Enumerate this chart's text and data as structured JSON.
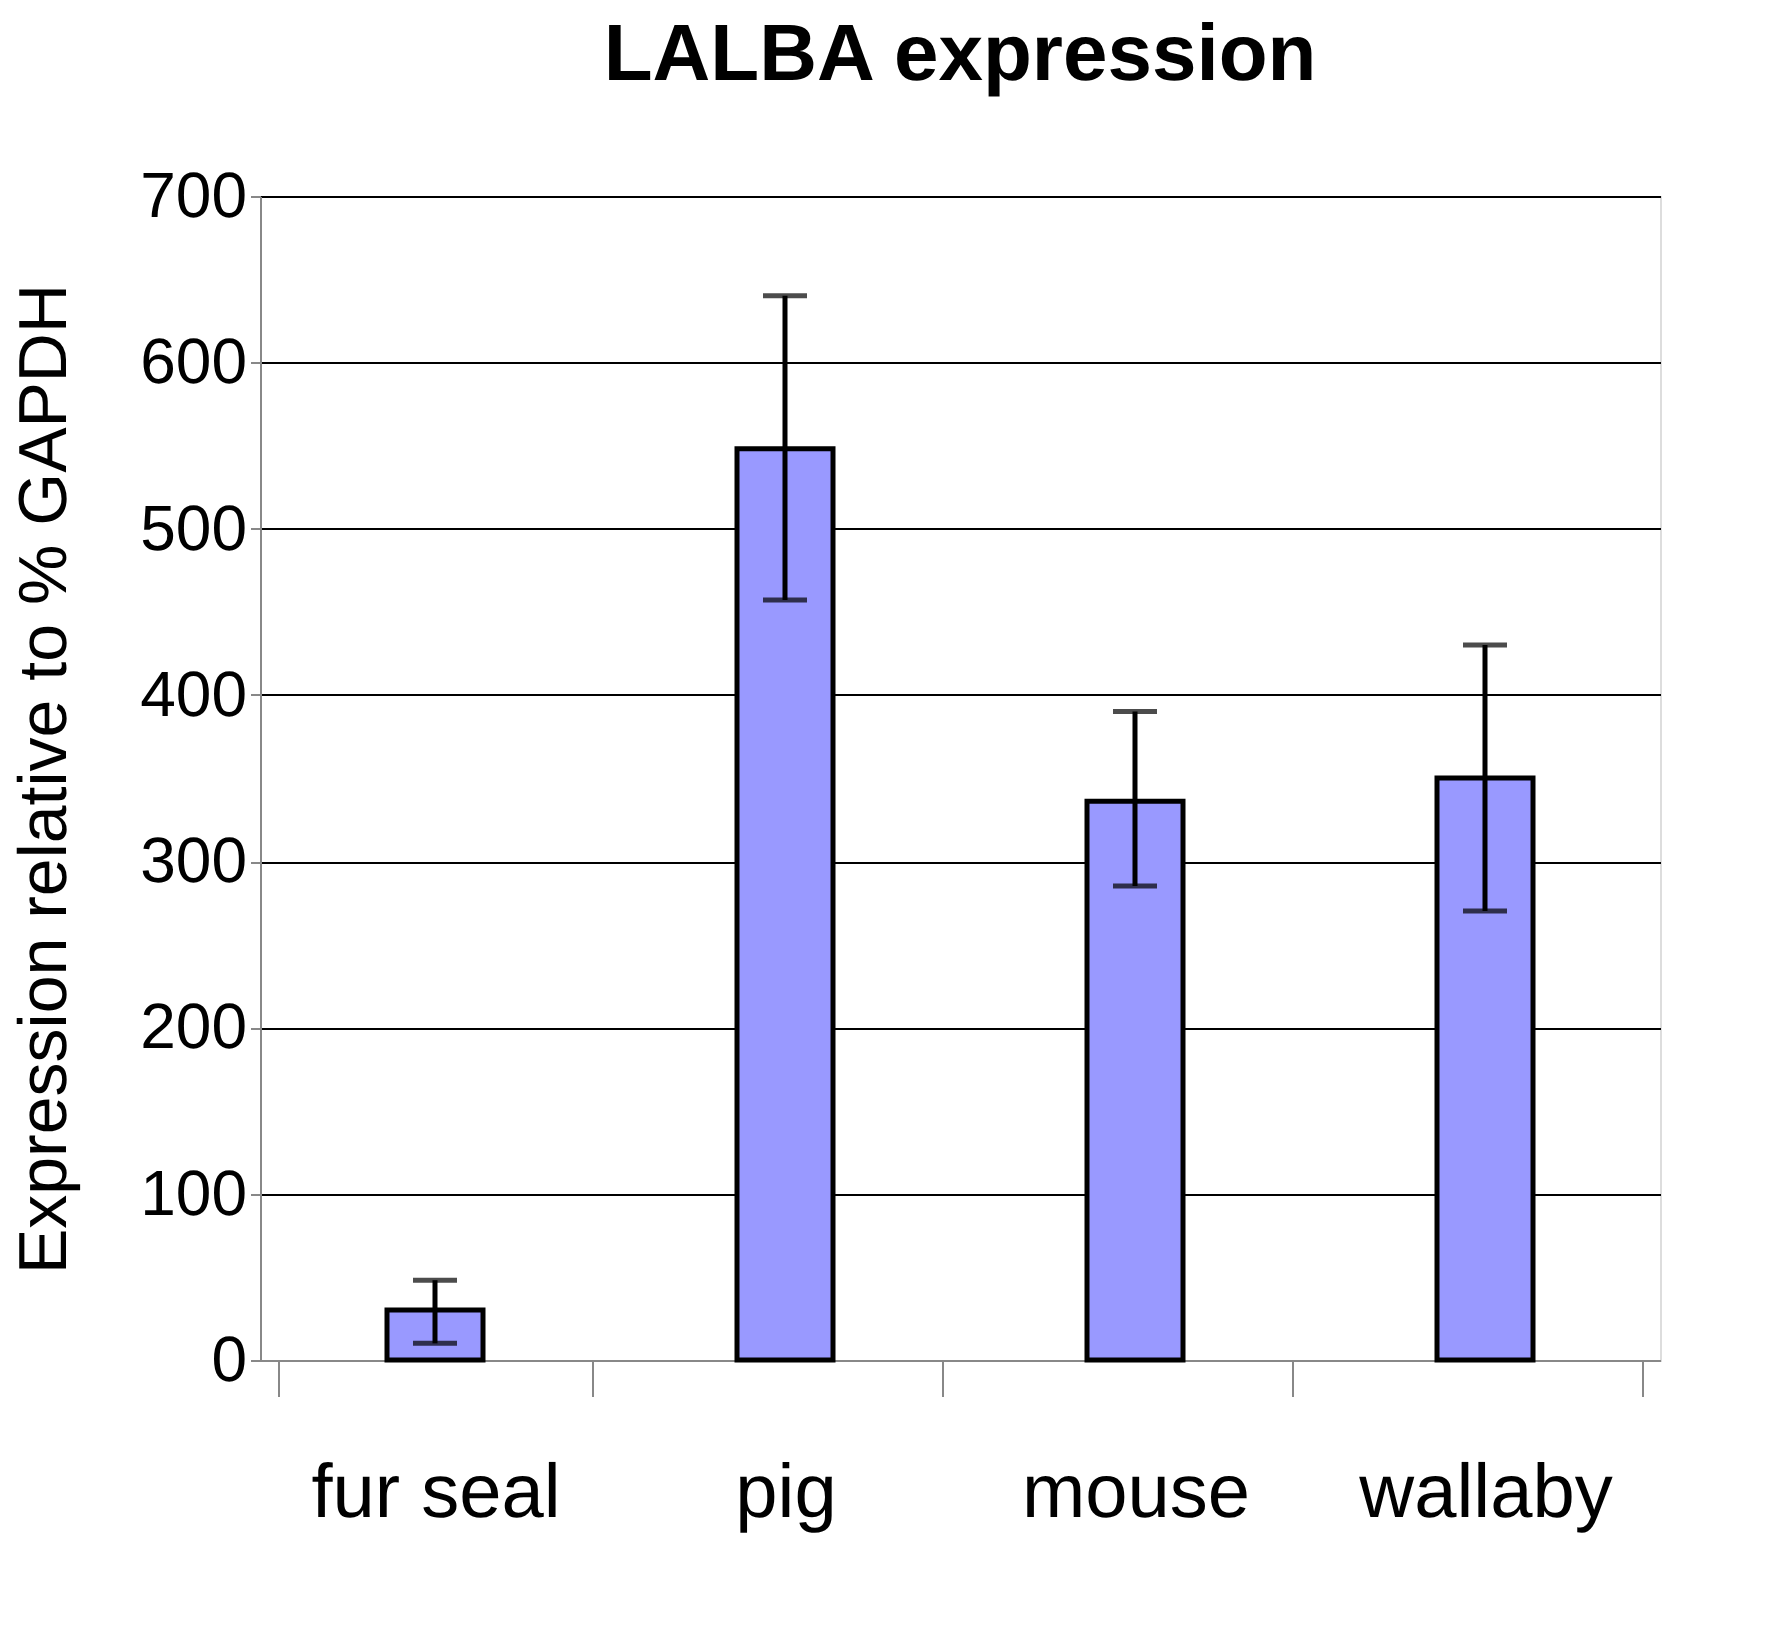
{
  "chart_data": {
    "type": "bar",
    "title": "LALBA expression",
    "ylabel": "Expression relative to % GAPDH",
    "categories": [
      "fur seal",
      "pig",
      "mouse",
      "wallaby"
    ],
    "values": [
      30,
      548,
      336,
      350
    ],
    "errors": [
      [
        10,
        48
      ],
      [
        457,
        640
      ],
      [
        285,
        390
      ],
      [
        270,
        430
      ]
    ],
    "color": "#9999ff",
    "ylim": [
      0,
      700
    ],
    "yticks": [
      0,
      100,
      200,
      300,
      400,
      500,
      600,
      700
    ],
    "grid": "y"
  }
}
